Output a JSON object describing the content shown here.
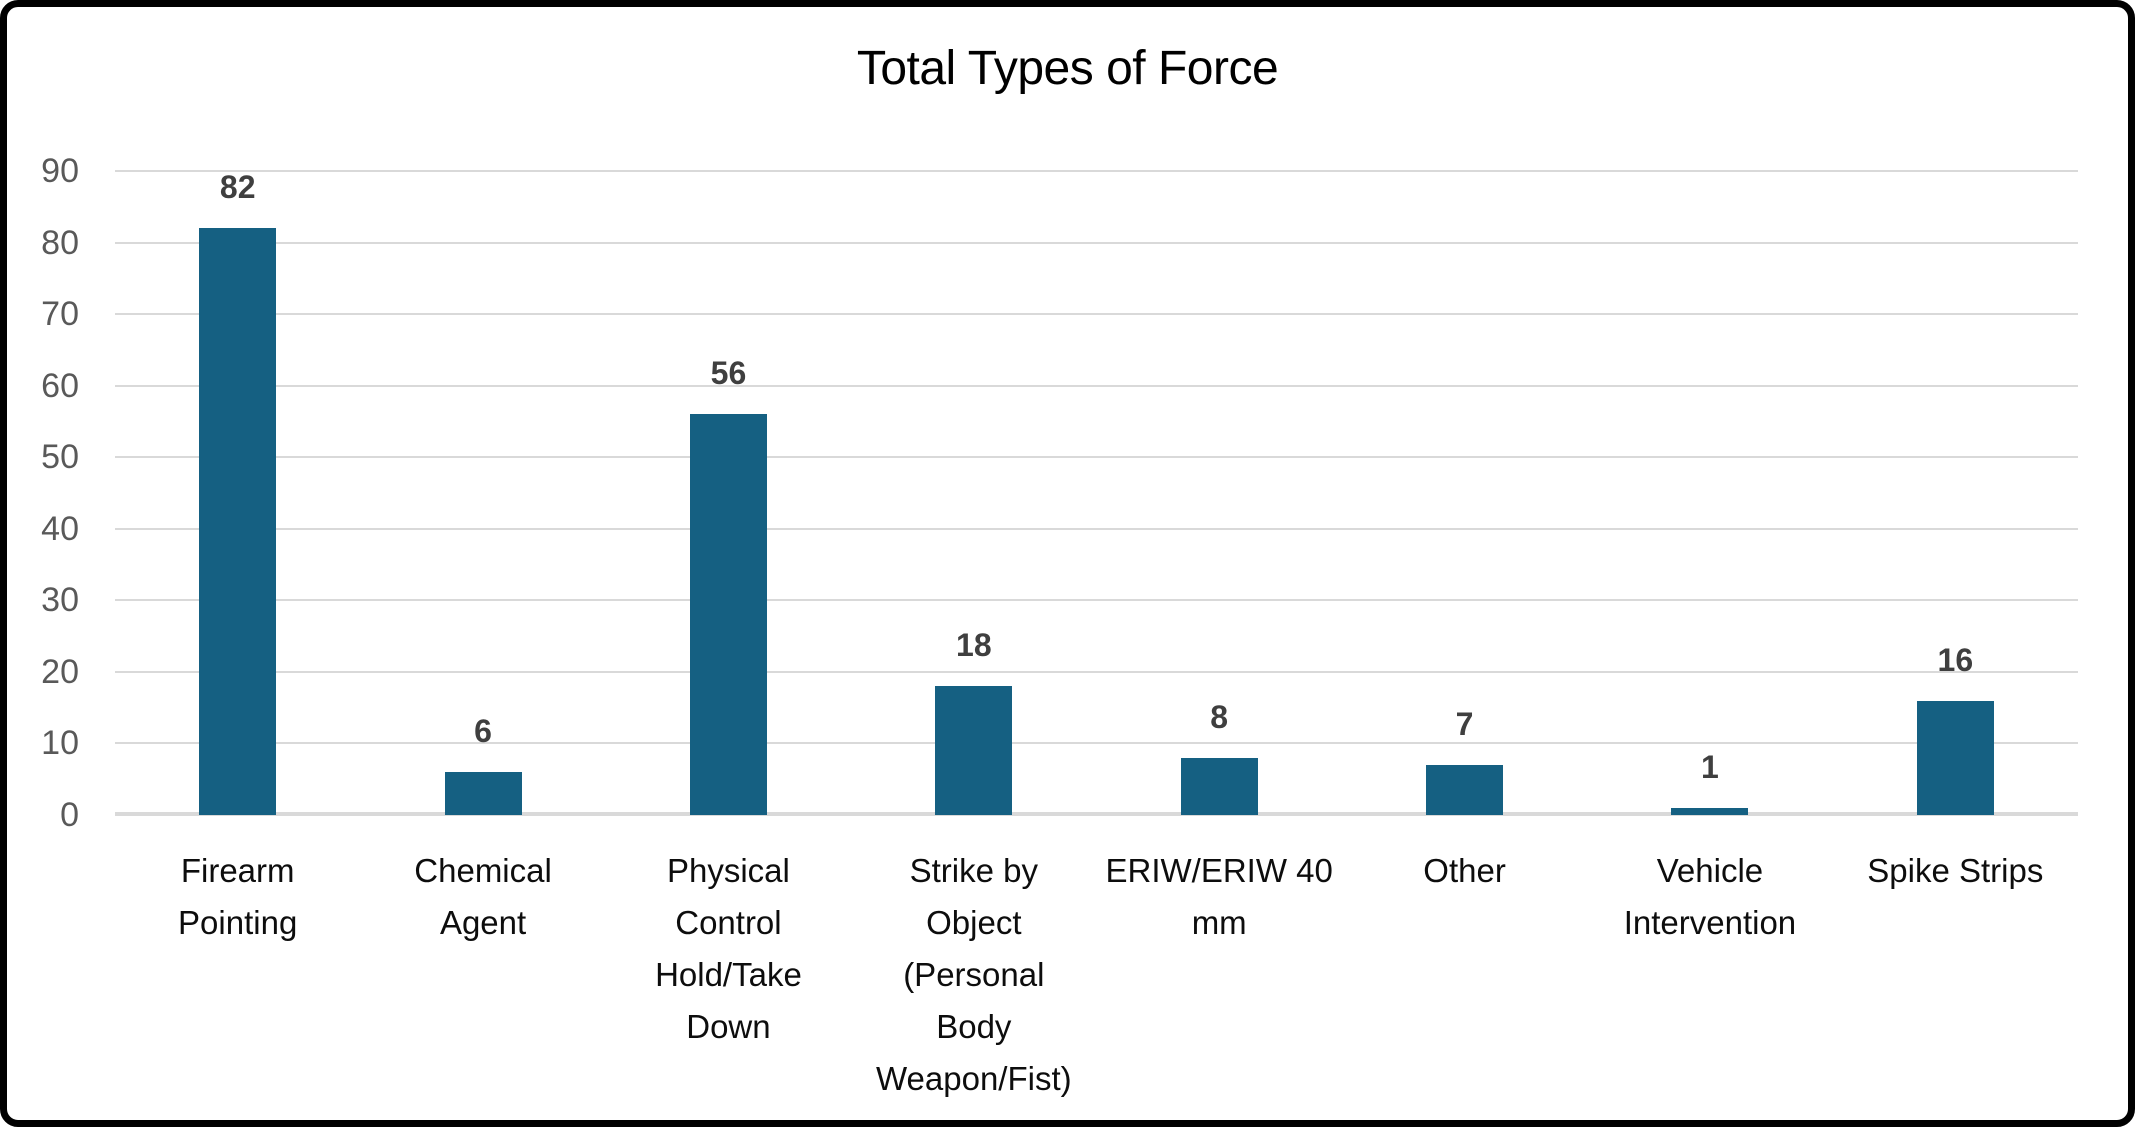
{
  "chart_data": {
    "type": "bar",
    "title": "Total Types of Force",
    "categories": [
      "Firearm Pointing",
      "Chemical Agent",
      "Physical Control Hold/Take Down",
      "Strike by Object (Personal Body Weapon/Fist)",
      "ERIW/ERIW 40 mm",
      "Other",
      "Vehicle Intervention",
      "Spike Strips"
    ],
    "category_lines": [
      [
        "Firearm",
        "Pointing"
      ],
      [
        "Chemical",
        "Agent"
      ],
      [
        "Physical",
        "Control",
        "Hold/Take",
        "Down"
      ],
      [
        "Strike by",
        "Object",
        "(Personal",
        "Body",
        "Weapon/Fist)"
      ],
      [
        "ERIW/ERIW 40",
        "mm"
      ],
      [
        "Other"
      ],
      [
        "Vehicle",
        "Intervention"
      ],
      [
        "Spike Strips"
      ]
    ],
    "values": [
      82,
      6,
      56,
      18,
      8,
      7,
      1,
      16
    ],
    "xlabel": "",
    "ylabel": "",
    "ylim": [
      0,
      90
    ],
    "yticks": [
      0,
      10,
      20,
      30,
      40,
      50,
      60,
      70,
      80,
      90
    ],
    "grid": true,
    "legend": "none",
    "colors": {
      "bar": "#156082",
      "value_label": "#3f3f3f",
      "y_tick_label": "#595959",
      "category_label": "#0d0d0d",
      "gridline": "#d9d9d9",
      "title": "#000000",
      "frame_border": "#000000",
      "background": "#ffffff"
    }
  }
}
